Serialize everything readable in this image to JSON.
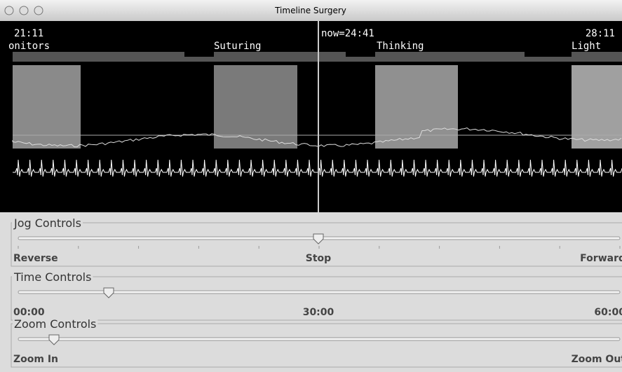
{
  "window": {
    "title": "Timeline Surgery"
  },
  "timeline": {
    "times": [
      "21:11",
      "now=24:41",
      "28:11"
    ],
    "events": [
      "onitors",
      "Suturing",
      "Thinking",
      "Light"
    ]
  },
  "controls": [
    {
      "title": "Jog Controls",
      "labels": [
        "Reverse",
        "Stop",
        "Forward"
      ]
    },
    {
      "title": "Time Controls",
      "labels": [
        "00:00",
        "30:00",
        "60:00"
      ]
    },
    {
      "title": "Zoom Controls",
      "labels": [
        "Zoom In",
        "Zoom Out"
      ]
    }
  ]
}
